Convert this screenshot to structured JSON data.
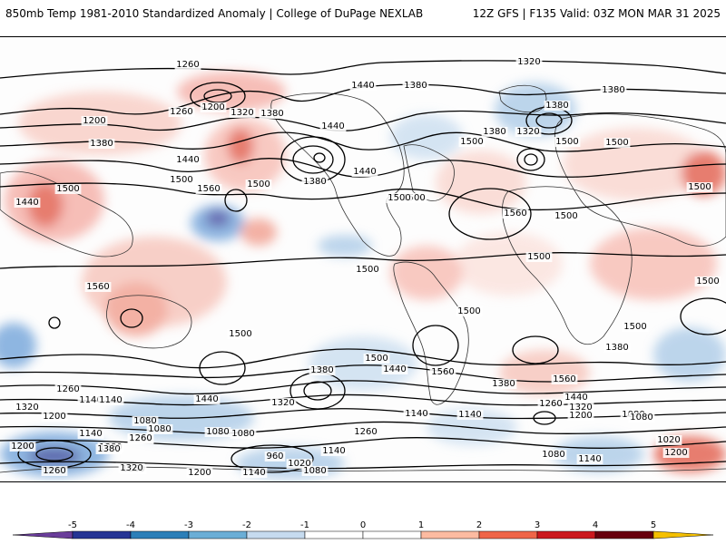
{
  "header": {
    "title": "850mb Temp 1981-2010 Standardized Anomaly | College of DuPage NEXLAB",
    "run_info": "12Z GFS | F135 Valid: 03Z MON MAR 31 2025"
  },
  "contour_labels": [
    {
      "text": "1260"
    },
    {
      "text": "1320"
    },
    {
      "text": "1440"
    },
    {
      "text": "1380"
    },
    {
      "text": "1200"
    },
    {
      "text": "1260"
    },
    {
      "text": "1200"
    },
    {
      "text": "1320"
    },
    {
      "text": "1380"
    },
    {
      "text": "1380"
    },
    {
      "text": "1380"
    },
    {
      "text": "1440"
    },
    {
      "text": "1380"
    },
    {
      "text": "1320"
    },
    {
      "text": "1560"
    },
    {
      "text": "1440"
    },
    {
      "text": "1500"
    },
    {
      "text": "1500"
    },
    {
      "text": "1440"
    },
    {
      "text": "1380"
    },
    {
      "text": "1500"
    },
    {
      "text": "1560"
    },
    {
      "text": "1500"
    },
    {
      "text": "1500"
    },
    {
      "text": "1500"
    },
    {
      "text": "1380"
    },
    {
      "text": "1500"
    },
    {
      "text": "1440"
    },
    {
      "text": "1560"
    },
    {
      "text": "1500"
    },
    {
      "text": "1500"
    },
    {
      "text": "1500"
    },
    {
      "text": "1500"
    },
    {
      "text": "1500"
    },
    {
      "text": "1500"
    },
    {
      "text": "1500"
    },
    {
      "text": "1500"
    },
    {
      "text": "1500"
    },
    {
      "text": "1440"
    },
    {
      "text": "1380"
    },
    {
      "text": "1560"
    },
    {
      "text": "1560"
    },
    {
      "text": "1500"
    },
    {
      "text": "1380"
    },
    {
      "text": "1260"
    },
    {
      "text": "1140"
    },
    {
      "text": "1440"
    },
    {
      "text": "1320"
    },
    {
      "text": "1320"
    },
    {
      "text": "1200"
    },
    {
      "text": "1140"
    },
    {
      "text": "1080"
    },
    {
      "text": "1380"
    },
    {
      "text": "1260"
    },
    {
      "text": "1440"
    },
    {
      "text": "1320"
    },
    {
      "text": "1260"
    },
    {
      "text": "1200"
    },
    {
      "text": "1080"
    },
    {
      "text": "1200"
    },
    {
      "text": "1140"
    },
    {
      "text": "1380"
    },
    {
      "text": "1260"
    },
    {
      "text": "1080"
    },
    {
      "text": "1260"
    },
    {
      "text": "1140"
    },
    {
      "text": "1080"
    },
    {
      "text": "1140"
    },
    {
      "text": "960"
    },
    {
      "text": "1020"
    },
    {
      "text": "1080"
    },
    {
      "text": "1080"
    },
    {
      "text": "1260"
    },
    {
      "text": "1320"
    },
    {
      "text": "1200"
    },
    {
      "text": "1140"
    },
    {
      "text": "1020"
    },
    {
      "text": "1140"
    },
    {
      "text": "1080"
    },
    {
      "text": "1200"
    },
    {
      "text": "1380"
    },
    {
      "text": "1260"
    },
    {
      "text": "1140"
    },
    {
      "text": "1080"
    }
  ],
  "colorbar": {
    "ticks": [
      "-5",
      "-4",
      "-3",
      "-2",
      "-1",
      "0",
      "1",
      "2",
      "3",
      "4",
      "5"
    ],
    "colors": [
      "#6a3d9a",
      "#253494",
      "#2c7fb8",
      "#6baed6",
      "#c6dbef",
      "#ffffff",
      "#ffffff",
      "#fcbba1",
      "#ef6548",
      "#cb181d",
      "#67000d",
      "#f5c000"
    ]
  }
}
